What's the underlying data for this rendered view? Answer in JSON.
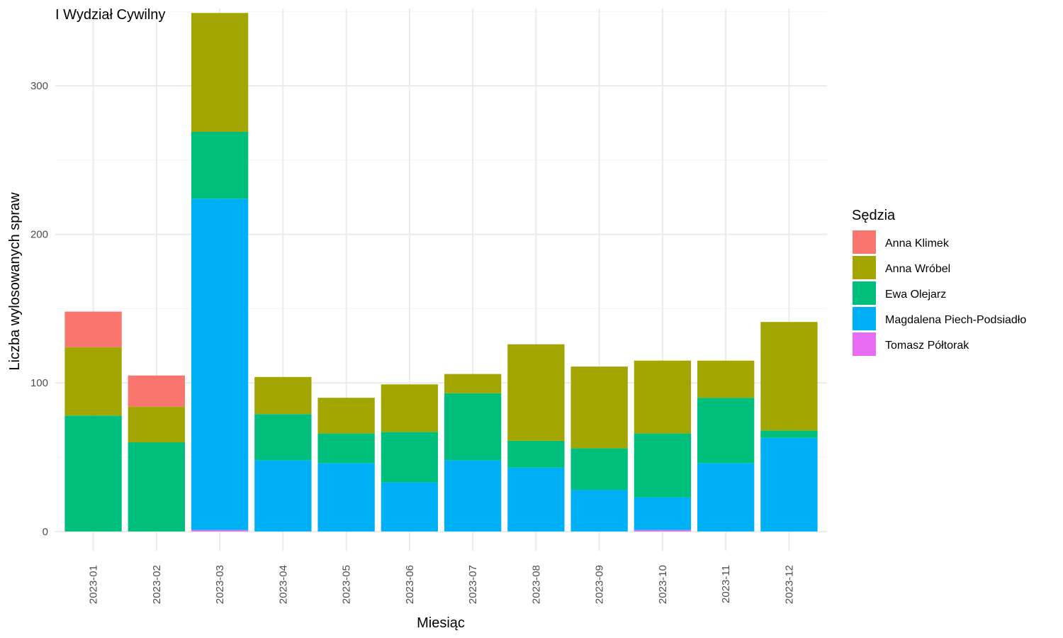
{
  "chart_data": {
    "type": "bar",
    "stacked": true,
    "title": "I Wydział Cywilny",
    "xlabel": "Miesiąc",
    "ylabel": "Liczba wylosowanych spraw",
    "ylim": [
      -13,
      352
    ],
    "yticks": [
      0,
      100,
      200,
      300
    ],
    "grid": true,
    "legend": {
      "title": "Sędzia",
      "position": "right"
    },
    "categories": [
      "2023-01",
      "2023-02",
      "2023-03",
      "2023-04",
      "2023-05",
      "2023-06",
      "2023-07",
      "2023-08",
      "2023-09",
      "2023-10",
      "2023-11",
      "2023-12"
    ],
    "series": [
      {
        "name": "Tomasz Półtorak",
        "color": "#E76BF3",
        "values": [
          0,
          0,
          1,
          0,
          0,
          0,
          0,
          0,
          0,
          1,
          0,
          0
        ]
      },
      {
        "name": "Magdalena Piech-Podsiadło",
        "color": "#00B0F6",
        "values": [
          0,
          0,
          223,
          48,
          46,
          33,
          48,
          43,
          28,
          22,
          46,
          63
        ]
      },
      {
        "name": "Ewa Olejarz",
        "color": "#00BF7D",
        "values": [
          78,
          60,
          45,
          31,
          20,
          34,
          45,
          18,
          28,
          43,
          44,
          5
        ]
      },
      {
        "name": "Anna Wróbel",
        "color": "#A3A500",
        "values": [
          46,
          24,
          80,
          25,
          24,
          32,
          13,
          65,
          55,
          49,
          25,
          73
        ]
      },
      {
        "name": "Anna Klimek",
        "color": "#F8766D",
        "values": [
          24,
          21,
          0,
          0,
          0,
          0,
          0,
          0,
          0,
          0,
          0,
          0
        ]
      }
    ],
    "legend_order": [
      "Anna Klimek",
      "Anna Wróbel",
      "Ewa Olejarz",
      "Magdalena Piech-Podsiadło",
      "Tomasz Półtorak"
    ]
  }
}
